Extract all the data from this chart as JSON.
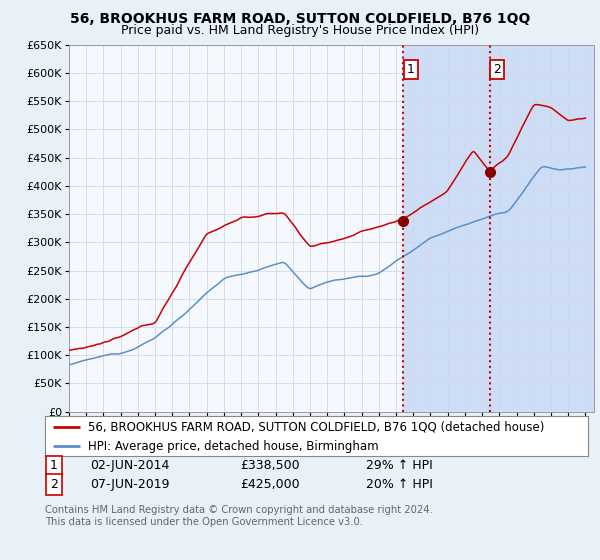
{
  "title": "56, BROOKHUS FARM ROAD, SUTTON COLDFIELD, B76 1QQ",
  "subtitle": "Price paid vs. HM Land Registry's House Price Index (HPI)",
  "ylim": [
    0,
    650000
  ],
  "yticks": [
    0,
    50000,
    100000,
    150000,
    200000,
    250000,
    300000,
    350000,
    400000,
    450000,
    500000,
    550000,
    600000,
    650000
  ],
  "xlim_start": 1995.0,
  "xlim_end": 2025.5,
  "sale1_date": 2014.42,
  "sale1_price": 338500,
  "sale2_date": 2019.44,
  "sale2_price": 425000,
  "hpi_color": "#5b8fc9",
  "price_color": "#cc0000",
  "vline_color": "#cc0000",
  "shade_color": "#ccddf5",
  "background_color": "#e8f0f8",
  "plot_bg_color": "#f5f8fd",
  "grid_color": "#d0d8e8",
  "legend_label_red": "56, BROOKHUS FARM ROAD, SUTTON COLDFIELD, B76 1QQ (detached house)",
  "legend_label_blue": "HPI: Average price, detached house, Birmingham",
  "footer": "Contains HM Land Registry data © Crown copyright and database right 2024.\nThis data is licensed under the Open Government Licence v3.0.",
  "title_fontsize": 10,
  "subtitle_fontsize": 9,
  "tick_fontsize": 8,
  "legend_fontsize": 8.5,
  "ann_fontsize": 9
}
